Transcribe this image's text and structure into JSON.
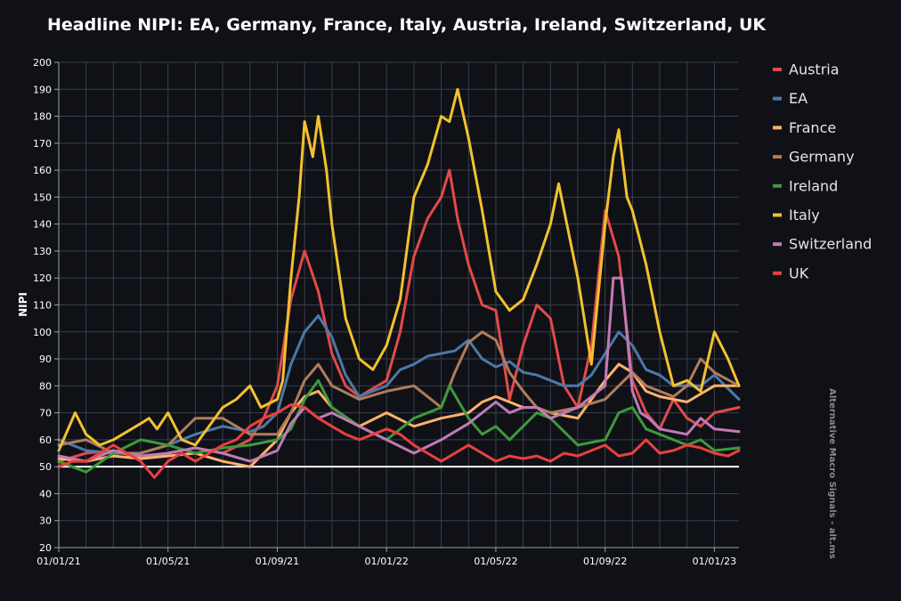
{
  "chart_data": {
    "type": "line",
    "title": "Headline NIPI: EA, Germany, France, Italy, Austria, Ireland, Switzerland, UK",
    "xlabel": "",
    "ylabel": "NIPI",
    "ylim": [
      20,
      200
    ],
    "yticks": [
      20,
      30,
      40,
      50,
      60,
      70,
      80,
      90,
      100,
      110,
      120,
      130,
      140,
      150,
      160,
      170,
      180,
      190,
      200
    ],
    "x_range_months": [
      0,
      24.9
    ],
    "x_tick_labels": [
      {
        "label": "01/01/21",
        "month": 0
      },
      {
        "label": "01/05/21",
        "month": 4
      },
      {
        "label": "01/09/21",
        "month": 8
      },
      {
        "label": "01/01/22",
        "month": 12
      },
      {
        "label": "01/05/22",
        "month": 16
      },
      {
        "label": "01/09/22",
        "month": 20
      },
      {
        "label": "01/01/23",
        "month": 24
      }
    ],
    "reference_line": {
      "value": 50,
      "color": "#ffffff"
    },
    "grid": true,
    "legend_position": "right",
    "watermark": "Alternative Macro Signals - alt.ms",
    "series": [
      {
        "name": "Austria",
        "color": "#e24a4a",
        "x": [
          0,
          1,
          2,
          3,
          4,
          5,
          6,
          7,
          7.5,
          8,
          8.5,
          9,
          9.5,
          10,
          10.5,
          11,
          12,
          12.5,
          13,
          13.5,
          14,
          14.3,
          14.6,
          15,
          15.5,
          16,
          16.5,
          17,
          17.5,
          18,
          18.5,
          19,
          19.5,
          20,
          20.5,
          21,
          21.5,
          22,
          22.5,
          23,
          23.5,
          24,
          24.9
        ],
        "y": [
          52,
          55,
          56,
          53,
          55,
          57,
          55,
          60,
          68,
          80,
          112,
          130,
          115,
          92,
          80,
          76,
          82,
          100,
          128,
          142,
          150,
          160,
          142,
          125,
          110,
          108,
          75,
          95,
          110,
          105,
          80,
          72,
          95,
          145,
          128,
          82,
          70,
          64,
          75,
          68,
          65,
          70,
          72
        ]
      },
      {
        "name": "EA",
        "color": "#4c78a8",
        "x": [
          0,
          1,
          2,
          3,
          4,
          5,
          6,
          7,
          7.5,
          8,
          8.5,
          9,
          9.5,
          10,
          10.5,
          11,
          12,
          12.5,
          13,
          13.5,
          14,
          14.5,
          15,
          15.5,
          16,
          16.5,
          17,
          17.5,
          18,
          18.5,
          19,
          19.5,
          20,
          20.5,
          21,
          21.5,
          22,
          22.5,
          23,
          23.5,
          24,
          24.9
        ],
        "y": [
          60,
          56,
          55,
          55,
          58,
          62,
          65,
          63,
          65,
          70,
          88,
          100,
          106,
          98,
          84,
          76,
          80,
          86,
          88,
          91,
          92,
          93,
          97,
          90,
          87,
          89,
          85,
          84,
          82,
          80,
          80,
          84,
          92,
          100,
          95,
          86,
          84,
          80,
          80,
          80,
          84,
          75
        ]
      },
      {
        "name": "France",
        "color": "#ffb26b",
        "x": [
          0,
          1,
          2,
          3,
          4,
          5,
          6,
          7,
          8,
          8.5,
          9,
          9.5,
          10,
          11,
          12,
          13,
          14,
          15,
          15.5,
          16,
          16.5,
          17,
          17.5,
          18,
          19,
          19.5,
          20,
          20.5,
          21,
          21.5,
          22,
          23,
          24,
          24.9
        ],
        "y": [
          53,
          52,
          54,
          53,
          54,
          55,
          52,
          50,
          60,
          70,
          76,
          78,
          72,
          65,
          70,
          65,
          68,
          70,
          74,
          76,
          74,
          72,
          72,
          70,
          68,
          75,
          82,
          88,
          85,
          78,
          76,
          74,
          80,
          80
        ]
      },
      {
        "name": "Germany",
        "color": "#b07c5b",
        "x": [
          0,
          1,
          2,
          3,
          4,
          5,
          6,
          7,
          8,
          8.5,
          9,
          9.5,
          10,
          11,
          12,
          13,
          14,
          14.5,
          15,
          15.5,
          16,
          16.5,
          17,
          17.5,
          18,
          19,
          20,
          20.5,
          21,
          21.5,
          22,
          22.5,
          23,
          23.5,
          24,
          24.9
        ],
        "y": [
          58,
          60,
          55,
          55,
          58,
          68,
          68,
          62,
          62,
          70,
          82,
          88,
          80,
          75,
          78,
          80,
          72,
          85,
          96,
          100,
          97,
          85,
          78,
          72,
          70,
          72,
          75,
          80,
          85,
          80,
          78,
          76,
          80,
          90,
          85,
          80
        ]
      },
      {
        "name": "Ireland",
        "color": "#3b9a3b",
        "x": [
          0,
          1,
          2,
          3,
          4,
          5,
          6,
          7,
          8,
          8.5,
          9,
          9.5,
          10,
          11,
          12,
          13,
          14,
          14.3,
          15,
          15.5,
          16,
          16.5,
          17,
          17.5,
          18,
          19,
          20,
          20.5,
          21,
          21.5,
          22,
          22.5,
          23,
          23.5,
          24,
          24.9
        ],
        "y": [
          52,
          48,
          55,
          60,
          58,
          55,
          57,
          58,
          60,
          64,
          75,
          82,
          72,
          65,
          60,
          68,
          72,
          80,
          68,
          62,
          65,
          60,
          65,
          70,
          68,
          58,
          60,
          70,
          72,
          64,
          62,
          60,
          58,
          60,
          56,
          57
        ]
      },
      {
        "name": "Italy",
        "color": "#f2c12e",
        "x": [
          0,
          0.6,
          1,
          1.5,
          2,
          3,
          3.3,
          3.6,
          4,
          4.5,
          5,
          5.5,
          6,
          6.5,
          7,
          7.4,
          8,
          8.2,
          8.5,
          8.8,
          9,
          9.3,
          9.5,
          9.8,
          10,
          10.5,
          11,
          11.5,
          12,
          12.5,
          13,
          13.5,
          14,
          14.3,
          14.6,
          15,
          15.5,
          16,
          16.5,
          17,
          17.5,
          18,
          18.3,
          18.6,
          19,
          19.5,
          20,
          20.3,
          20.5,
          20.8,
          21,
          21.5,
          22,
          22.5,
          23,
          23.5,
          24,
          24.5,
          24.9
        ],
        "y": [
          56,
          70,
          62,
          58,
          60,
          66,
          68,
          64,
          70,
          60,
          58,
          65,
          72,
          75,
          80,
          72,
          75,
          82,
          120,
          150,
          178,
          165,
          180,
          160,
          140,
          105,
          90,
          86,
          95,
          112,
          150,
          162,
          180,
          178,
          190,
          172,
          145,
          115,
          108,
          112,
          125,
          140,
          155,
          140,
          120,
          88,
          140,
          165,
          175,
          150,
          145,
          125,
          100,
          80,
          82,
          78,
          100,
          90,
          80
        ]
      },
      {
        "name": "Switzerland",
        "color": "#c07bb5",
        "x": [
          0,
          1,
          2,
          3,
          4,
          5,
          6,
          7,
          8,
          8.5,
          9,
          9.5,
          10,
          11,
          12,
          13,
          14,
          15,
          15.5,
          16,
          16.5,
          17,
          17.5,
          18,
          19,
          20,
          20.3,
          20.6,
          21,
          21.3,
          21.6,
          22,
          23,
          23.5,
          24,
          24.9
        ],
        "y": [
          54,
          52,
          56,
          54,
          55,
          57,
          55,
          52,
          56,
          66,
          72,
          68,
          70,
          65,
          60,
          55,
          60,
          66,
          70,
          74,
          70,
          72,
          72,
          68,
          72,
          80,
          120,
          120,
          78,
          70,
          68,
          64,
          62,
          68,
          64,
          63
        ]
      },
      {
        "name": "UK",
        "color": "#e8413f",
        "x": [
          0,
          0.5,
          1,
          1.5,
          2,
          2.5,
          3,
          3.5,
          4,
          4.5,
          5,
          5.5,
          6,
          6.5,
          7,
          7.5,
          8,
          8.5,
          9,
          9.5,
          10,
          10.5,
          11,
          11.5,
          12,
          12.5,
          13,
          13.5,
          14,
          14.5,
          15,
          15.5,
          16,
          16.5,
          17,
          17.5,
          18,
          18.5,
          19,
          19.5,
          20,
          20.5,
          21,
          21.5,
          22,
          22.5,
          23,
          23.5,
          24,
          24.5,
          24.9
        ],
        "y": [
          50,
          52,
          52,
          55,
          58,
          55,
          52,
          46,
          52,
          55,
          52,
          55,
          58,
          60,
          65,
          68,
          70,
          73,
          72,
          68,
          65,
          62,
          60,
          62,
          64,
          62,
          58,
          55,
          52,
          55,
          58,
          55,
          52,
          54,
          53,
          54,
          52,
          55,
          54,
          56,
          58,
          54,
          55,
          60,
          55,
          56,
          58,
          57,
          55,
          54,
          56
        ]
      }
    ]
  }
}
